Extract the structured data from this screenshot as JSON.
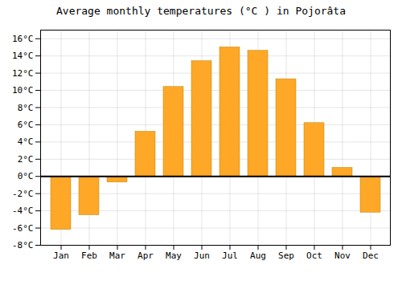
{
  "chart_data": {
    "type": "bar",
    "title": "Average monthly temperatures (°C ) in Pojorâta",
    "categories": [
      "Jan",
      "Feb",
      "Mar",
      "Apr",
      "May",
      "Jun",
      "Jul",
      "Aug",
      "Sep",
      "Oct",
      "Nov",
      "Dec"
    ],
    "values": [
      -6.2,
      -4.5,
      -0.7,
      5.2,
      10.4,
      13.4,
      15.0,
      14.6,
      11.3,
      6.2,
      1.0,
      -4.2
    ],
    "color": "#FFA726",
    "ylim": [
      -8,
      17
    ],
    "yticks": [
      {
        "value": -8,
        "label": "-8°C"
      },
      {
        "value": -6,
        "label": "-6°C"
      },
      {
        "value": -4,
        "label": "-4°C"
      },
      {
        "value": -2,
        "label": "-2°C"
      },
      {
        "value": 0,
        "label": "0°C"
      },
      {
        "value": 2,
        "label": "2°C"
      },
      {
        "value": 4,
        "label": "4°C"
      },
      {
        "value": 6,
        "label": "6°C"
      },
      {
        "value": 8,
        "label": "8°C"
      },
      {
        "value": 10,
        "label": "10°C"
      },
      {
        "value": 12,
        "label": "12°C"
      },
      {
        "value": 14,
        "label": "14°C"
      },
      {
        "value": 16,
        "label": "16°C"
      }
    ],
    "grid": true
  }
}
